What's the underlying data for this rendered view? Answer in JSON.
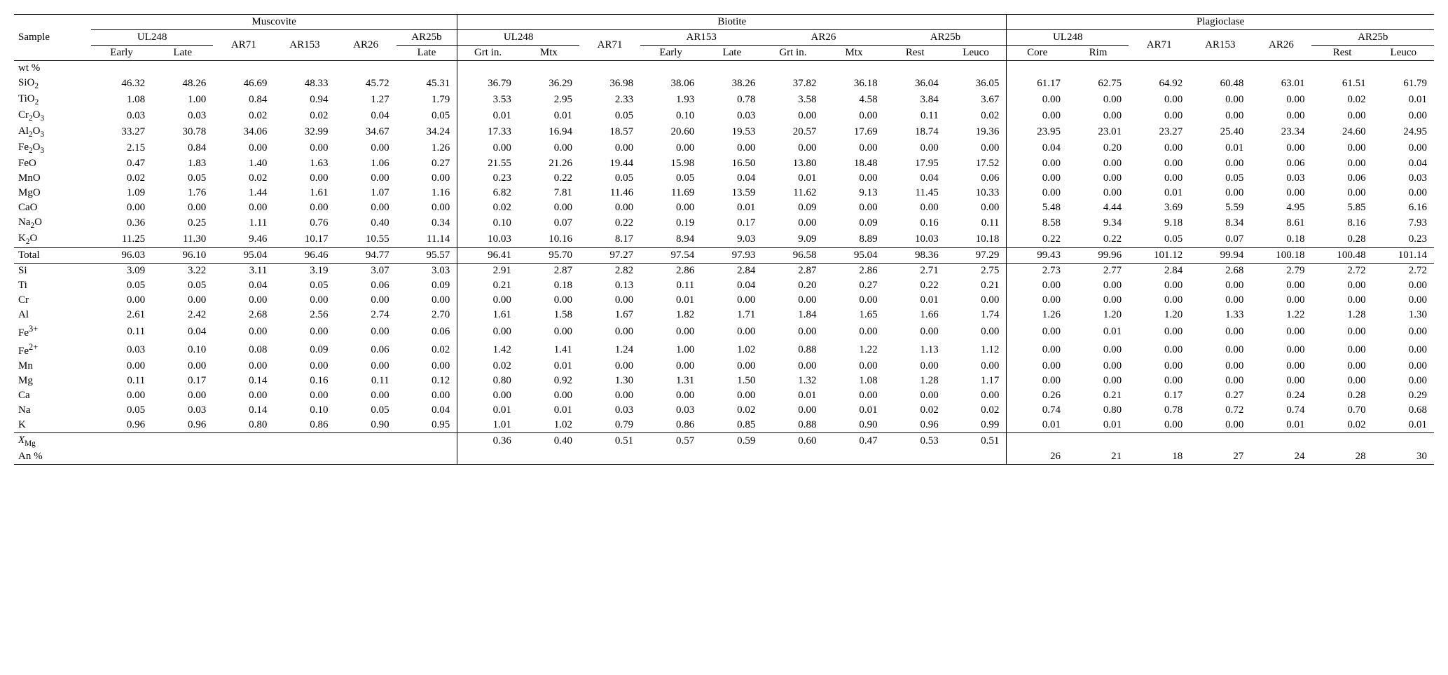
{
  "fonts": {
    "body_family": "Times New Roman",
    "body_size_pt": 15,
    "color": "#000000",
    "bg": "#ffffff"
  },
  "header": {
    "sample": "Sample",
    "groups": [
      "Muscovite",
      "Biotite",
      "Plagioclase"
    ],
    "muscovite_cols": [
      "UL248",
      "AR71",
      "AR153",
      "AR26",
      "AR25b"
    ],
    "biotite_cols": [
      "UL248",
      "AR71",
      "AR153",
      "AR26",
      "AR25b"
    ],
    "plag_cols": [
      "UL248",
      "AR71",
      "AR153",
      "AR26",
      "AR25b"
    ],
    "sub": {
      "early": "Early",
      "late": "Late",
      "grtin": "Grt in.",
      "mtx": "Mtx",
      "rest": "Rest",
      "leuco": "Leuco",
      "core": "Core",
      "rim": "Rim"
    }
  },
  "section_labels": {
    "wtpct": "wt %",
    "total": "Total",
    "xmg": "X",
    "xmg_sub": "Mg",
    "anpct": "An %"
  },
  "row_labels": {
    "SiO2": {
      "pre": "SiO",
      "sub": "2"
    },
    "TiO2": {
      "pre": "TiO",
      "sub": "2"
    },
    "Cr2O3": {
      "pre": "Cr",
      "sub": "2",
      "post": "O",
      "sub2": "3"
    },
    "Al2O3": {
      "pre": "Al",
      "sub": "2",
      "post": "O",
      "sub2": "3"
    },
    "Fe2O3": {
      "pre": "Fe",
      "sub": "2",
      "post": "O",
      "sub2": "3"
    },
    "FeO": {
      "pre": "FeO"
    },
    "MnO": {
      "pre": "MnO"
    },
    "MgO": {
      "pre": "MgO"
    },
    "CaO": {
      "pre": "CaO"
    },
    "Na2O": {
      "pre": "Na",
      "sub": "2",
      "post": "O"
    },
    "K2O": {
      "pre": "K",
      "sub": "2",
      "post": "O"
    },
    "Si": {
      "pre": "Si"
    },
    "Ti": {
      "pre": "Ti"
    },
    "Cr": {
      "pre": "Cr"
    },
    "Al": {
      "pre": "Al"
    },
    "Fe3": {
      "pre": "Fe",
      "sup": "3+"
    },
    "Fe2": {
      "pre": "Fe",
      "sup": "2+"
    },
    "Mn": {
      "pre": "Mn"
    },
    "Mg": {
      "pre": "Mg"
    },
    "Ca": {
      "pre": "Ca"
    },
    "Na": {
      "pre": "Na"
    },
    "K": {
      "pre": "K"
    }
  },
  "data": {
    "SiO2": [
      "46.32",
      "48.26",
      "46.69",
      "48.33",
      "45.72",
      "45.31",
      "36.79",
      "36.29",
      "36.98",
      "38.06",
      "38.26",
      "37.82",
      "36.18",
      "36.04",
      "36.05",
      "61.17",
      "62.75",
      "64.92",
      "60.48",
      "63.01",
      "61.51",
      "61.79"
    ],
    "TiO2": [
      "1.08",
      "1.00",
      "0.84",
      "0.94",
      "1.27",
      "1.79",
      "3.53",
      "2.95",
      "2.33",
      "1.93",
      "0.78",
      "3.58",
      "4.58",
      "3.84",
      "3.67",
      "0.00",
      "0.00",
      "0.00",
      "0.00",
      "0.00",
      "0.02",
      "0.01"
    ],
    "Cr2O3": [
      "0.03",
      "0.03",
      "0.02",
      "0.02",
      "0.04",
      "0.05",
      "0.01",
      "0.01",
      "0.05",
      "0.10",
      "0.03",
      "0.00",
      "0.00",
      "0.11",
      "0.02",
      "0.00",
      "0.00",
      "0.00",
      "0.00",
      "0.00",
      "0.00",
      "0.00"
    ],
    "Al2O3": [
      "33.27",
      "30.78",
      "34.06",
      "32.99",
      "34.67",
      "34.24",
      "17.33",
      "16.94",
      "18.57",
      "20.60",
      "19.53",
      "20.57",
      "17.69",
      "18.74",
      "19.36",
      "23.95",
      "23.01",
      "23.27",
      "25.40",
      "23.34",
      "24.60",
      "24.95"
    ],
    "Fe2O3": [
      "2.15",
      "0.84",
      "0.00",
      "0.00",
      "0.00",
      "1.26",
      "0.00",
      "0.00",
      "0.00",
      "0.00",
      "0.00",
      "0.00",
      "0.00",
      "0.00",
      "0.00",
      "0.04",
      "0.20",
      "0.00",
      "0.01",
      "0.00",
      "0.00",
      "0.00"
    ],
    "FeO": [
      "0.47",
      "1.83",
      "1.40",
      "1.63",
      "1.06",
      "0.27",
      "21.55",
      "21.26",
      "19.44",
      "15.98",
      "16.50",
      "13.80",
      "18.48",
      "17.95",
      "17.52",
      "0.00",
      "0.00",
      "0.00",
      "0.00",
      "0.06",
      "0.00",
      "0.04"
    ],
    "MnO": [
      "0.02",
      "0.05",
      "0.02",
      "0.00",
      "0.00",
      "0.00",
      "0.23",
      "0.22",
      "0.05",
      "0.05",
      "0.04",
      "0.01",
      "0.00",
      "0.04",
      "0.06",
      "0.00",
      "0.00",
      "0.00",
      "0.05",
      "0.03",
      "0.06",
      "0.03"
    ],
    "MgO": [
      "1.09",
      "1.76",
      "1.44",
      "1.61",
      "1.07",
      "1.16",
      "6.82",
      "7.81",
      "11.46",
      "11.69",
      "13.59",
      "11.62",
      "9.13",
      "11.45",
      "10.33",
      "0.00",
      "0.00",
      "0.01",
      "0.00",
      "0.00",
      "0.00",
      "0.00"
    ],
    "CaO": [
      "0.00",
      "0.00",
      "0.00",
      "0.00",
      "0.00",
      "0.00",
      "0.02",
      "0.00",
      "0.00",
      "0.00",
      "0.01",
      "0.09",
      "0.00",
      "0.00",
      "0.00",
      "5.48",
      "4.44",
      "3.69",
      "5.59",
      "4.95",
      "5.85",
      "6.16"
    ],
    "Na2O": [
      "0.36",
      "0.25",
      "1.11",
      "0.76",
      "0.40",
      "0.34",
      "0.10",
      "0.07",
      "0.22",
      "0.19",
      "0.17",
      "0.00",
      "0.09",
      "0.16",
      "0.11",
      "8.58",
      "9.34",
      "9.18",
      "8.34",
      "8.61",
      "8.16",
      "7.93"
    ],
    "K2O": [
      "11.25",
      "11.30",
      "9.46",
      "10.17",
      "10.55",
      "11.14",
      "10.03",
      "10.16",
      "8.17",
      "8.94",
      "9.03",
      "9.09",
      "8.89",
      "10.03",
      "10.18",
      "0.22",
      "0.22",
      "0.05",
      "0.07",
      "0.18",
      "0.28",
      "0.23"
    ],
    "Total": [
      "96.03",
      "96.10",
      "95.04",
      "96.46",
      "94.77",
      "95.57",
      "96.41",
      "95.70",
      "97.27",
      "97.54",
      "97.93",
      "96.58",
      "95.04",
      "98.36",
      "97.29",
      "99.43",
      "99.96",
      "101.12",
      "99.94",
      "100.18",
      "100.48",
      "101.14"
    ],
    "Si": [
      "3.09",
      "3.22",
      "3.11",
      "3.19",
      "3.07",
      "3.03",
      "2.91",
      "2.87",
      "2.82",
      "2.86",
      "2.84",
      "2.87",
      "2.86",
      "2.71",
      "2.75",
      "2.73",
      "2.77",
      "2.84",
      "2.68",
      "2.79",
      "2.72",
      "2.72"
    ],
    "Ti": [
      "0.05",
      "0.05",
      "0.04",
      "0.05",
      "0.06",
      "0.09",
      "0.21",
      "0.18",
      "0.13",
      "0.11",
      "0.04",
      "0.20",
      "0.27",
      "0.22",
      "0.21",
      "0.00",
      "0.00",
      "0.00",
      "0.00",
      "0.00",
      "0.00",
      "0.00"
    ],
    "Cr": [
      "0.00",
      "0.00",
      "0.00",
      "0.00",
      "0.00",
      "0.00",
      "0.00",
      "0.00",
      "0.00",
      "0.01",
      "0.00",
      "0.00",
      "0.00",
      "0.01",
      "0.00",
      "0.00",
      "0.00",
      "0.00",
      "0.00",
      "0.00",
      "0.00",
      "0.00"
    ],
    "Al": [
      "2.61",
      "2.42",
      "2.68",
      "2.56",
      "2.74",
      "2.70",
      "1.61",
      "1.58",
      "1.67",
      "1.82",
      "1.71",
      "1.84",
      "1.65",
      "1.66",
      "1.74",
      "1.26",
      "1.20",
      "1.20",
      "1.33",
      "1.22",
      "1.28",
      "1.30"
    ],
    "Fe3": [
      "0.11",
      "0.04",
      "0.00",
      "0.00",
      "0.00",
      "0.06",
      "0.00",
      "0.00",
      "0.00",
      "0.00",
      "0.00",
      "0.00",
      "0.00",
      "0.00",
      "0.00",
      "0.00",
      "0.01",
      "0.00",
      "0.00",
      "0.00",
      "0.00",
      "0.00"
    ],
    "Fe2": [
      "0.03",
      "0.10",
      "0.08",
      "0.09",
      "0.06",
      "0.02",
      "1.42",
      "1.41",
      "1.24",
      "1.00",
      "1.02",
      "0.88",
      "1.22",
      "1.13",
      "1.12",
      "0.00",
      "0.00",
      "0.00",
      "0.00",
      "0.00",
      "0.00",
      "0.00"
    ],
    "Mn": [
      "0.00",
      "0.00",
      "0.00",
      "0.00",
      "0.00",
      "0.00",
      "0.02",
      "0.01",
      "0.00",
      "0.00",
      "0.00",
      "0.00",
      "0.00",
      "0.00",
      "0.00",
      "0.00",
      "0.00",
      "0.00",
      "0.00",
      "0.00",
      "0.00",
      "0.00"
    ],
    "Mg": [
      "0.11",
      "0.17",
      "0.14",
      "0.16",
      "0.11",
      "0.12",
      "0.80",
      "0.92",
      "1.30",
      "1.31",
      "1.50",
      "1.32",
      "1.08",
      "1.28",
      "1.17",
      "0.00",
      "0.00",
      "0.00",
      "0.00",
      "0.00",
      "0.00",
      "0.00"
    ],
    "Ca": [
      "0.00",
      "0.00",
      "0.00",
      "0.00",
      "0.00",
      "0.00",
      "0.00",
      "0.00",
      "0.00",
      "0.00",
      "0.00",
      "0.01",
      "0.00",
      "0.00",
      "0.00",
      "0.26",
      "0.21",
      "0.17",
      "0.27",
      "0.24",
      "0.28",
      "0.29"
    ],
    "Na": [
      "0.05",
      "0.03",
      "0.14",
      "0.10",
      "0.05",
      "0.04",
      "0.01",
      "0.01",
      "0.03",
      "0.03",
      "0.02",
      "0.00",
      "0.01",
      "0.02",
      "0.02",
      "0.74",
      "0.80",
      "0.78",
      "0.72",
      "0.74",
      "0.70",
      "0.68"
    ],
    "K": [
      "0.96",
      "0.96",
      "0.80",
      "0.86",
      "0.90",
      "0.95",
      "1.01",
      "1.02",
      "0.79",
      "0.86",
      "0.85",
      "0.88",
      "0.90",
      "0.96",
      "0.99",
      "0.01",
      "0.01",
      "0.00",
      "0.00",
      "0.01",
      "0.02",
      "0.01"
    ],
    "XMg": [
      "",
      "",
      "",
      "",
      "",
      "",
      "0.36",
      "0.40",
      "0.51",
      "0.57",
      "0.59",
      "0.60",
      "0.47",
      "0.53",
      "0.51",
      "",
      "",
      "",
      "",
      "",
      "",
      ""
    ],
    "An": [
      "",
      "",
      "",
      "",
      "",
      "",
      "",
      "",
      "",
      "",
      "",
      "",
      "",
      "",
      "",
      "26",
      "21",
      "18",
      "27",
      "24",
      "28",
      "30"
    ]
  }
}
